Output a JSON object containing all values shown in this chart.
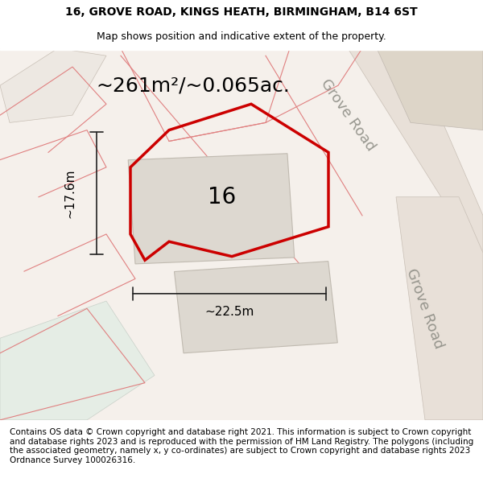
{
  "title_line1": "16, GROVE ROAD, KINGS HEATH, BIRMINGHAM, B14 6ST",
  "title_line2": "Map shows position and indicative extent of the property.",
  "area_label": "~261m²/~0.065ac.",
  "number_label": "16",
  "dim_width": "~22.5m",
  "dim_height": "~17.6m",
  "road_label1": "Grove Road",
  "road_label2": "Grove Road",
  "footer_text": "Contains OS data © Crown copyright and database right 2021. This information is subject to Crown copyright and database rights 2023 and is reproduced with the permission of HM Land Registry. The polygons (including the associated geometry, namely x, y co-ordinates) are subject to Crown copyright and database rights 2023 Ordnance Survey 100026316.",
  "bg_color": "#f5f0eb",
  "map_bg": "#f5f0eb",
  "road_fill": "#e8e0d8",
  "road_stroke": "#c8bfb5",
  "building_fill": "#ddd8d0",
  "building_stroke": "#c0bab0",
  "green_fill": "#e8f0e8",
  "property_stroke": "#cc0000",
  "property_fill": "none",
  "dim_line_color": "#222222",
  "title_fontsize": 10,
  "subtitle_fontsize": 9,
  "area_fontsize": 18,
  "number_fontsize": 20,
  "dim_fontsize": 11,
  "road_fontsize": 13,
  "footer_fontsize": 7.5
}
